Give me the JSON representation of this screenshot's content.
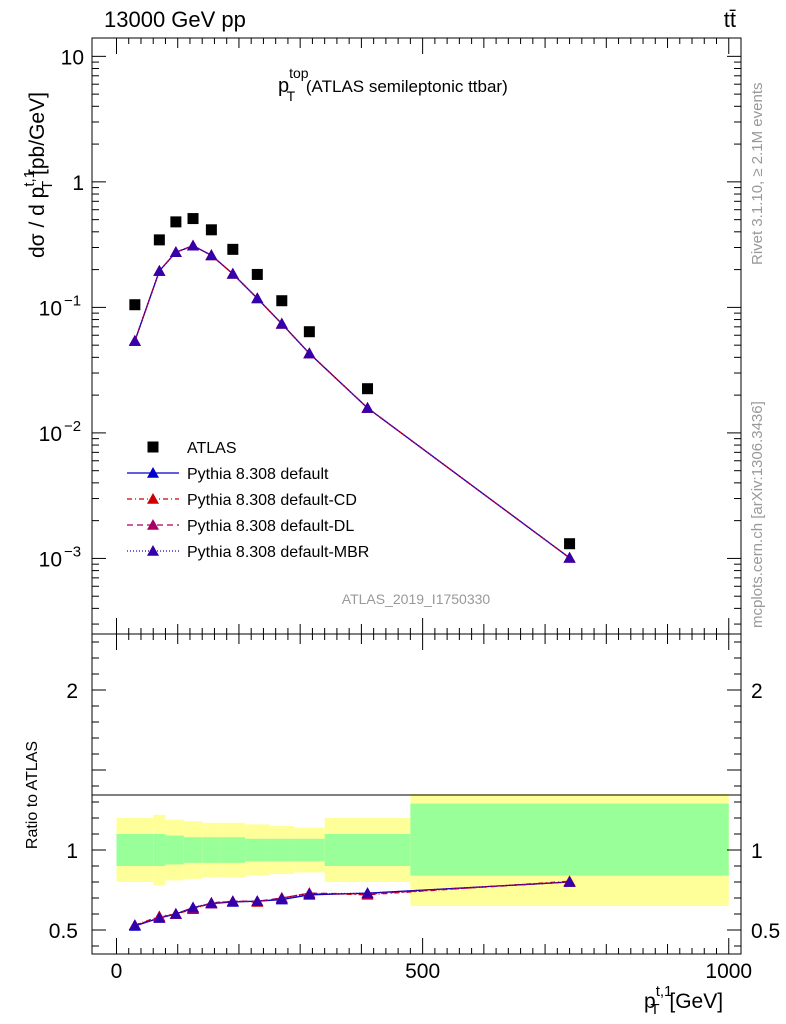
{
  "header": {
    "left": "13000 GeV pp",
    "right": "tt̄"
  },
  "side": {
    "rivet": "Rivet 3.1.10, ≥ 2.1M events",
    "mcplots": "mcplots.cern.ch [arXiv:1306.3436]"
  },
  "colors": {
    "data": "#000000",
    "default": "#0000cc",
    "cd": "#cc0000",
    "dl": "#aa0066",
    "mbr": "#3300aa",
    "band_inner": "#99ff99",
    "band_outer": "#ffff99"
  },
  "chart_data": [
    {
      "type": "scatter",
      "title_main": "p",
      "title_sup": "top",
      "title_sub": "T",
      "title_rest": " (ATLAS semileptonic ttbar)",
      "ylabel": "dσ / d p",
      "ylabel_sup": "t,1",
      "ylabel_sub": "T",
      "ylabel_unit": " [pb/GeV]",
      "yscale": "log",
      "ylim": [
        0.00025,
        14
      ],
      "xlim": [
        -40,
        1020
      ],
      "yticks": [
        {
          "v": 10,
          "label": "10"
        },
        {
          "v": 1,
          "label": "1"
        },
        {
          "v": 0.1,
          "base": "10",
          "exp": "−1"
        },
        {
          "v": 0.01,
          "base": "10",
          "exp": "−2"
        },
        {
          "v": 0.001,
          "base": "10",
          "exp": "−3"
        }
      ],
      "analysis_label": "ATLAS_2019_I1750330",
      "legend_position": "middle-left",
      "series": [
        {
          "name": "ATLAS",
          "style": "data",
          "x": [
            30,
            70,
            97,
            125,
            155,
            190,
            230,
            270,
            315,
            410,
            740
          ],
          "y": [
            0.105,
            0.345,
            0.48,
            0.51,
            0.415,
            0.29,
            0.183,
            0.113,
            0.064,
            0.0225,
            0.00131
          ]
        },
        {
          "name": "Pythia 8.308 default",
          "style": "default",
          "x": [
            30,
            70,
            97,
            125,
            155,
            190,
            230,
            270,
            315,
            410,
            740
          ],
          "y": [
            0.054,
            0.195,
            0.275,
            0.31,
            0.26,
            0.185,
            0.118,
            0.074,
            0.043,
            0.0158,
            0.00101
          ]
        },
        {
          "name": "Pythia 8.308 default-CD",
          "style": "cd",
          "x": [
            30,
            70,
            97,
            125,
            155,
            190,
            230,
            270,
            315,
            410,
            740
          ],
          "y": [
            0.054,
            0.195,
            0.275,
            0.31,
            0.26,
            0.185,
            0.118,
            0.074,
            0.043,
            0.0158,
            0.00101
          ]
        },
        {
          "name": "Pythia 8.308 default-DL",
          "style": "dl",
          "x": [
            30,
            70,
            97,
            125,
            155,
            190,
            230,
            270,
            315,
            410,
            740
          ],
          "y": [
            0.054,
            0.195,
            0.275,
            0.31,
            0.26,
            0.185,
            0.118,
            0.074,
            0.043,
            0.0158,
            0.00101
          ]
        },
        {
          "name": "Pythia 8.308 default-MBR",
          "style": "mbr",
          "x": [
            30,
            70,
            97,
            125,
            155,
            190,
            230,
            270,
            315,
            410,
            740
          ],
          "y": [
            0.054,
            0.195,
            0.275,
            0.31,
            0.26,
            0.185,
            0.118,
            0.074,
            0.043,
            0.0158,
            0.00101
          ]
        }
      ]
    },
    {
      "type": "line",
      "ylabel": "Ratio to ATLAS",
      "xlabel": "p",
      "xlabel_sup": "t,1",
      "xlabel_sub": "T",
      "xlabel_unit": " [GeV]",
      "ylim": [
        0.35,
        2.35
      ],
      "xlim": [
        -40,
        1020
      ],
      "xticks": [
        0,
        500,
        1000
      ],
      "yticks": [
        0.5,
        1,
        2
      ],
      "bins": [
        0,
        60,
        80,
        110,
        140,
        170,
        210,
        250,
        290,
        340,
        480,
        1000
      ],
      "band_outer": [
        [
          0.8,
          1.2
        ],
        [
          0.78,
          1.22
        ],
        [
          0.81,
          1.19
        ],
        [
          0.82,
          1.18
        ],
        [
          0.83,
          1.17
        ],
        [
          0.83,
          1.17
        ],
        [
          0.84,
          1.16
        ],
        [
          0.85,
          1.15
        ],
        [
          0.86,
          1.14
        ],
        [
          0.8,
          1.2
        ],
        [
          0.65,
          1.35
        ]
      ],
      "band_inner": [
        [
          0.9,
          1.1
        ],
        [
          0.9,
          1.1
        ],
        [
          0.91,
          1.09
        ],
        [
          0.92,
          1.08
        ],
        [
          0.92,
          1.08
        ],
        [
          0.92,
          1.08
        ],
        [
          0.93,
          1.07
        ],
        [
          0.93,
          1.07
        ],
        [
          0.93,
          1.07
        ],
        [
          0.9,
          1.1
        ],
        [
          0.84,
          1.29
        ]
      ],
      "series": [
        {
          "name": "Pythia 8.308 default",
          "style": "default",
          "x": [
            30,
            70,
            97,
            125,
            155,
            190,
            230,
            270,
            315,
            410,
            740
          ],
          "y": [
            0.525,
            0.575,
            0.6,
            0.64,
            0.665,
            0.675,
            0.68,
            0.69,
            0.72,
            0.73,
            0.8
          ]
        },
        {
          "name": "Pythia 8.308 default-CD",
          "style": "cd",
          "x": [
            30,
            70,
            97,
            125,
            155,
            190,
            230,
            270,
            315,
            410,
            740
          ],
          "y": [
            0.53,
            0.585,
            0.6,
            0.63,
            0.67,
            0.68,
            0.675,
            0.7,
            0.73,
            0.72,
            0.805
          ]
        },
        {
          "name": "Pythia 8.308 default-DL",
          "style": "dl",
          "x": [
            30,
            70,
            97,
            125,
            155,
            190,
            230,
            270,
            315,
            410,
            740
          ],
          "y": [
            0.53,
            0.58,
            0.6,
            0.635,
            0.665,
            0.68,
            0.68,
            0.7,
            0.73,
            0.725,
            0.8
          ]
        },
        {
          "name": "Pythia 8.308 default-MBR",
          "style": "mbr",
          "x": [
            30,
            70,
            97,
            125,
            155,
            190,
            230,
            270,
            315,
            410,
            740
          ],
          "y": [
            0.53,
            0.575,
            0.6,
            0.64,
            0.668,
            0.678,
            0.68,
            0.695,
            0.725,
            0.73,
            0.8
          ]
        }
      ]
    }
  ]
}
